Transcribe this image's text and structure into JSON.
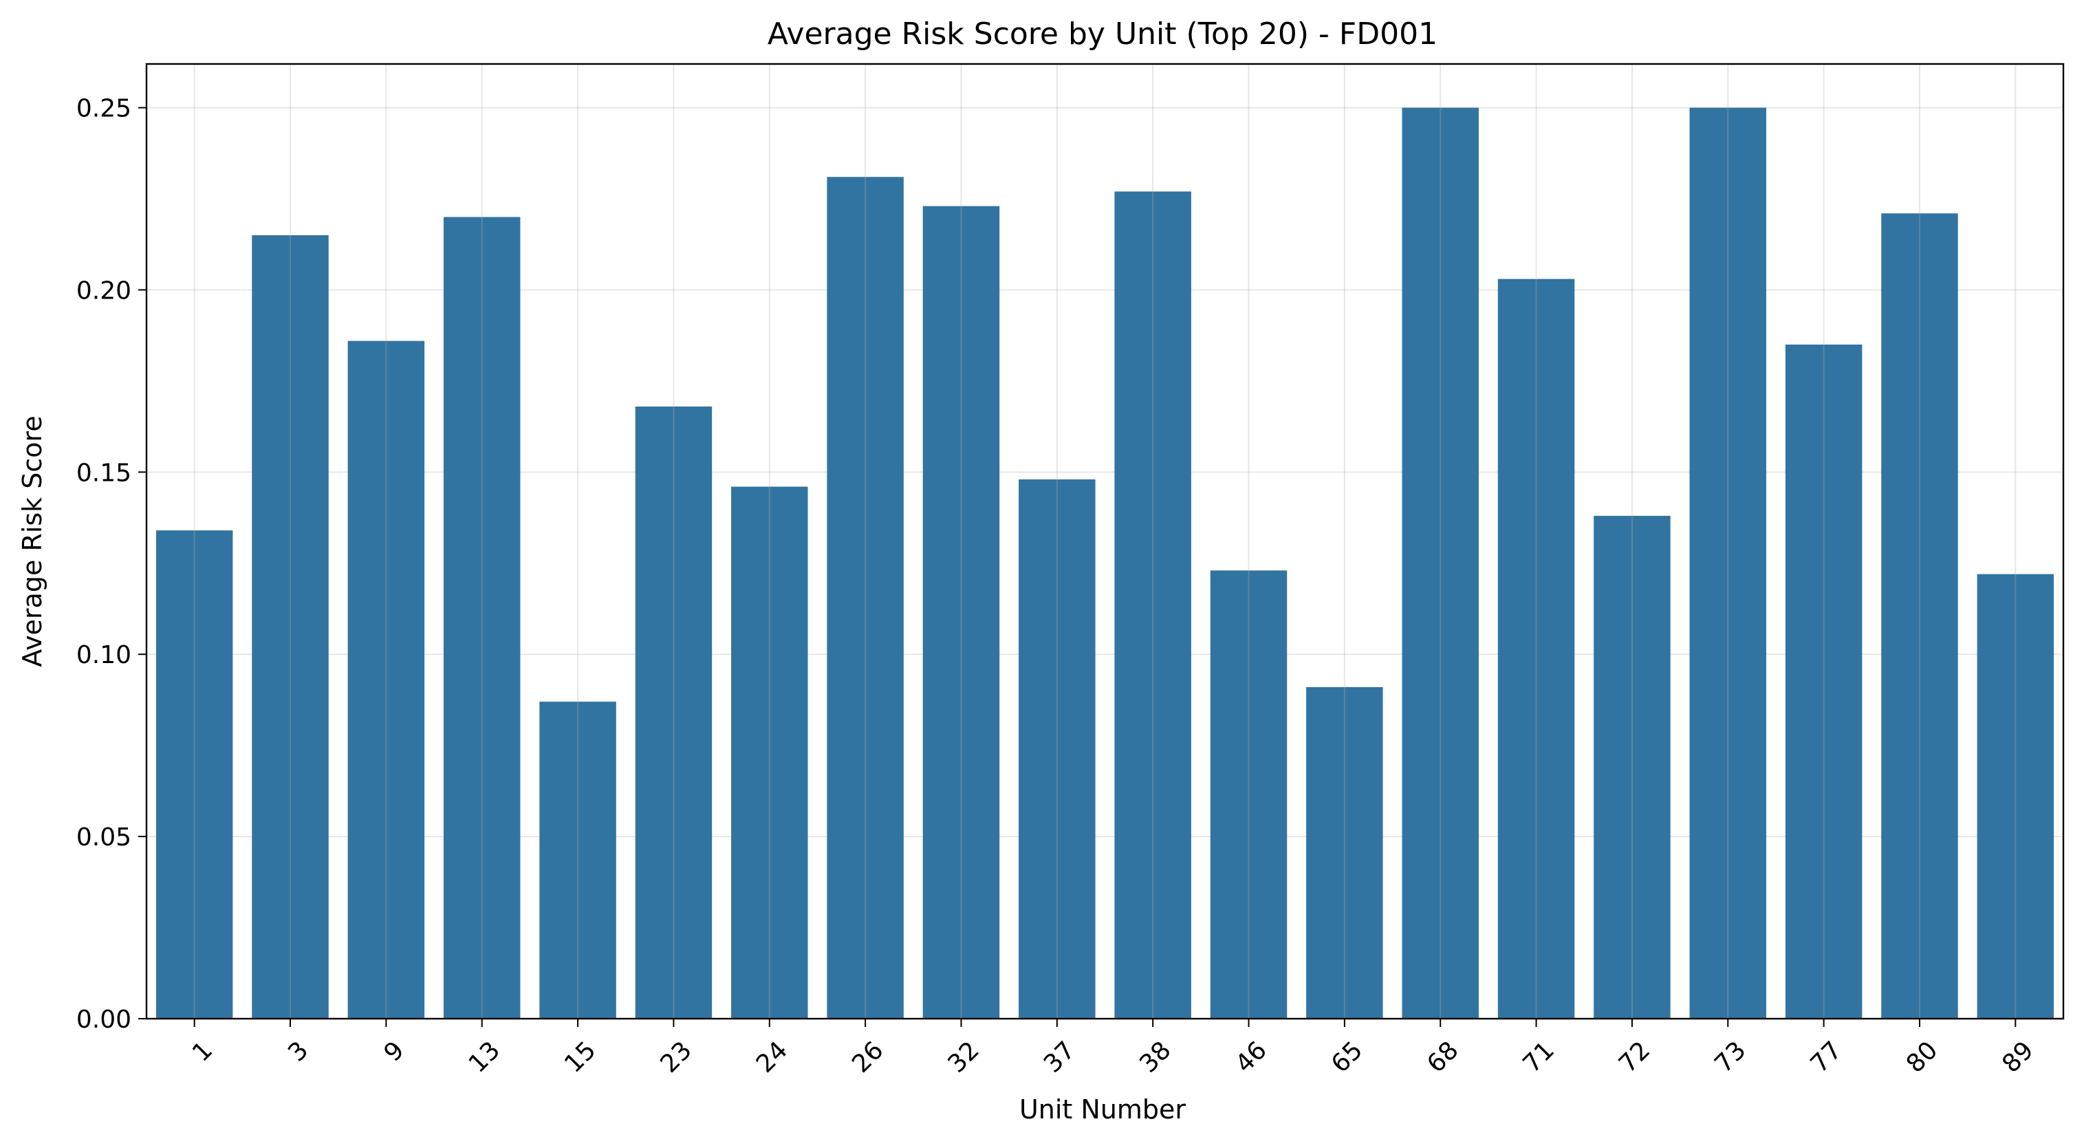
{
  "chart_data": {
    "type": "bar",
    "title": "Average Risk Score by Unit (Top 20) - FD001",
    "xlabel": "Unit Number",
    "ylabel": "Average Risk Score",
    "categories": [
      "1",
      "3",
      "9",
      "13",
      "15",
      "23",
      "24",
      "26",
      "32",
      "37",
      "38",
      "46",
      "65",
      "68",
      "71",
      "72",
      "73",
      "77",
      "80",
      "89"
    ],
    "values": [
      0.134,
      0.215,
      0.186,
      0.22,
      0.087,
      0.168,
      0.146,
      0.231,
      0.223,
      0.148,
      0.227,
      0.123,
      0.091,
      0.25,
      0.203,
      0.138,
      0.25,
      0.185,
      0.221,
      0.122
    ],
    "ylim": [
      0,
      0.262
    ],
    "yticks": [
      "0.00",
      "0.05",
      "0.10",
      "0.15",
      "0.20",
      "0.25"
    ],
    "grid": true,
    "bar_color": "#3274a1"
  }
}
